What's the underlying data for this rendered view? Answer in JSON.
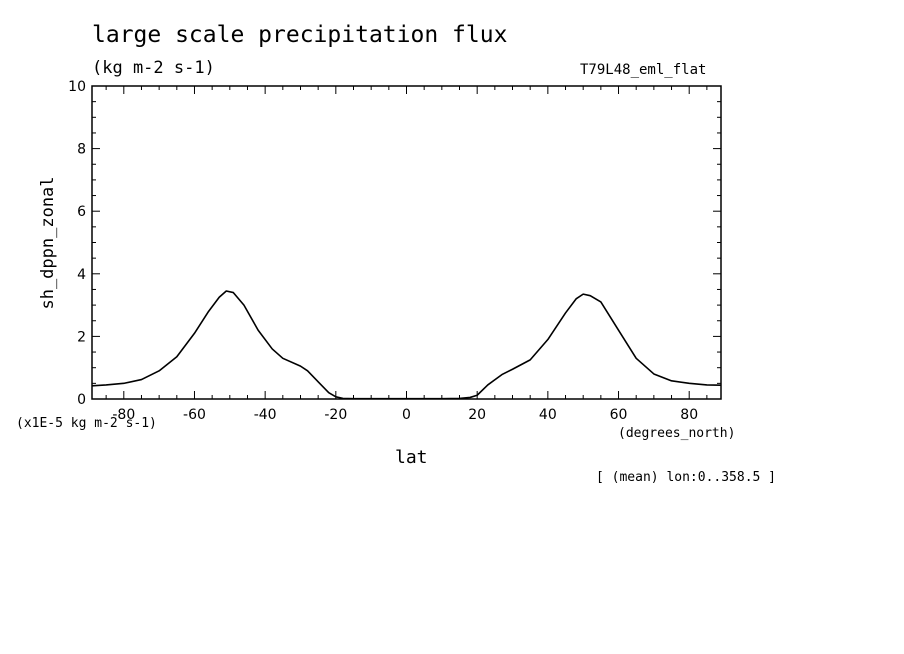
{
  "chart_data": {
    "type": "line",
    "title": "large scale precipitation flux",
    "units_label": "(kg m-2 s-1)",
    "run_label": "T79L48_eml_flat",
    "ylabel": "sh_dppn_zonal",
    "xlabel": "lat",
    "x_units": "(degrees_north)",
    "y_scale_note": "(x1E-5 kg m-2 s-1)",
    "subset_note": "[ (mean) lon:0..358.5 ]",
    "xlim": [
      -89,
      89
    ],
    "ylim": [
      0,
      10
    ],
    "x_ticks": [
      -80,
      -60,
      -40,
      -20,
      0,
      20,
      40,
      60,
      80
    ],
    "x_tick_labels": [
      "-80",
      "-60",
      "-40",
      "-20",
      "0",
      "20",
      "40",
      "60",
      "80"
    ],
    "y_ticks": [
      0,
      2,
      4,
      6,
      8,
      10
    ],
    "y_tick_labels": [
      "0",
      "2",
      "4",
      "6",
      "8",
      "10"
    ],
    "grid": false,
    "series": [
      {
        "x": [
          -89,
          -85,
          -80,
          -75,
          -70,
          -65,
          -60,
          -56,
          -53,
          -51,
          -49,
          -46,
          -42,
          -38,
          -35,
          -30,
          -28,
          -25,
          -22,
          -20,
          -18,
          -15,
          -10,
          -5,
          0,
          5,
          10,
          15,
          18,
          20,
          23,
          27,
          30,
          35,
          40,
          45,
          48,
          50,
          52,
          55,
          60,
          65,
          70,
          75,
          80,
          85,
          89
        ],
        "y": [
          0.42,
          0.45,
          0.5,
          0.62,
          0.9,
          1.35,
          2.1,
          2.8,
          3.25,
          3.45,
          3.4,
          3.0,
          2.2,
          1.6,
          1.3,
          1.05,
          0.9,
          0.55,
          0.2,
          0.07,
          0.02,
          0.01,
          0.01,
          0.01,
          0.01,
          0.01,
          0.01,
          0.02,
          0.05,
          0.12,
          0.45,
          0.78,
          0.95,
          1.25,
          1.9,
          2.75,
          3.2,
          3.35,
          3.3,
          3.1,
          2.2,
          1.3,
          0.8,
          0.58,
          0.5,
          0.45,
          0.44
        ],
        "color": "#000000"
      }
    ]
  }
}
